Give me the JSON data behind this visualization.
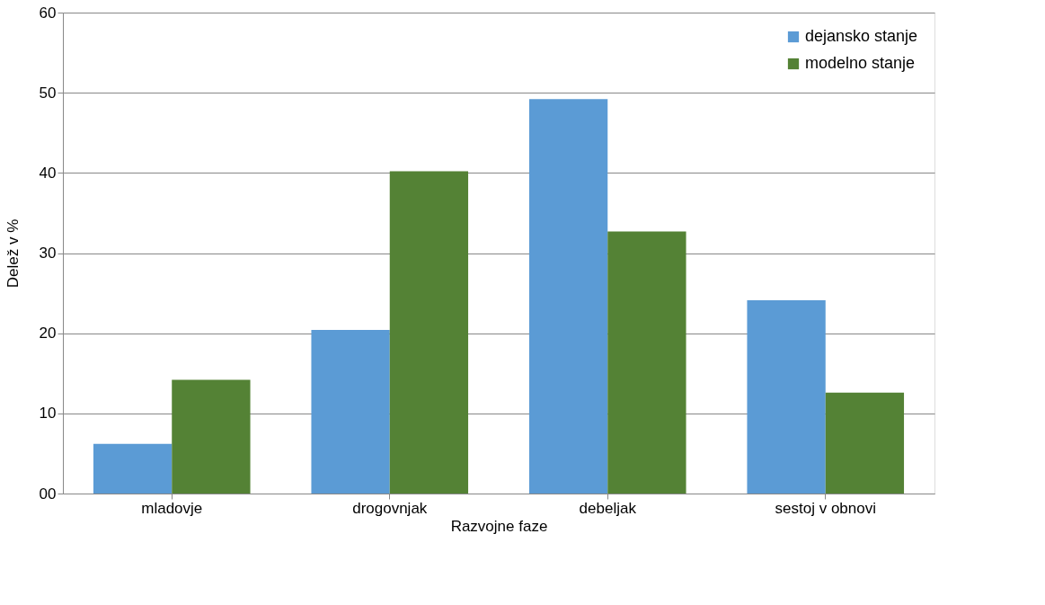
{
  "chart_data": {
    "type": "bar",
    "xlabel": "Razvojne faze",
    "ylabel": "Delež v %",
    "categories": [
      "mladovje",
      "drogovnjak",
      "debeljak",
      "sestoj v obnovi"
    ],
    "series": [
      {
        "name": "dejansko stanje",
        "color": "#5b9bd5",
        "values": [
          6.2,
          20.4,
          49.2,
          24.1
        ]
      },
      {
        "name": "modelno stanje",
        "color": "#548235",
        "values": [
          14.2,
          40.2,
          32.7,
          12.6
        ]
      }
    ],
    "ylim": [
      0,
      60
    ],
    "yticks": [
      {
        "value": 0,
        "label": "00"
      },
      10,
      20,
      30,
      40,
      50,
      60
    ],
    "grid": "y",
    "legend": "top right"
  }
}
